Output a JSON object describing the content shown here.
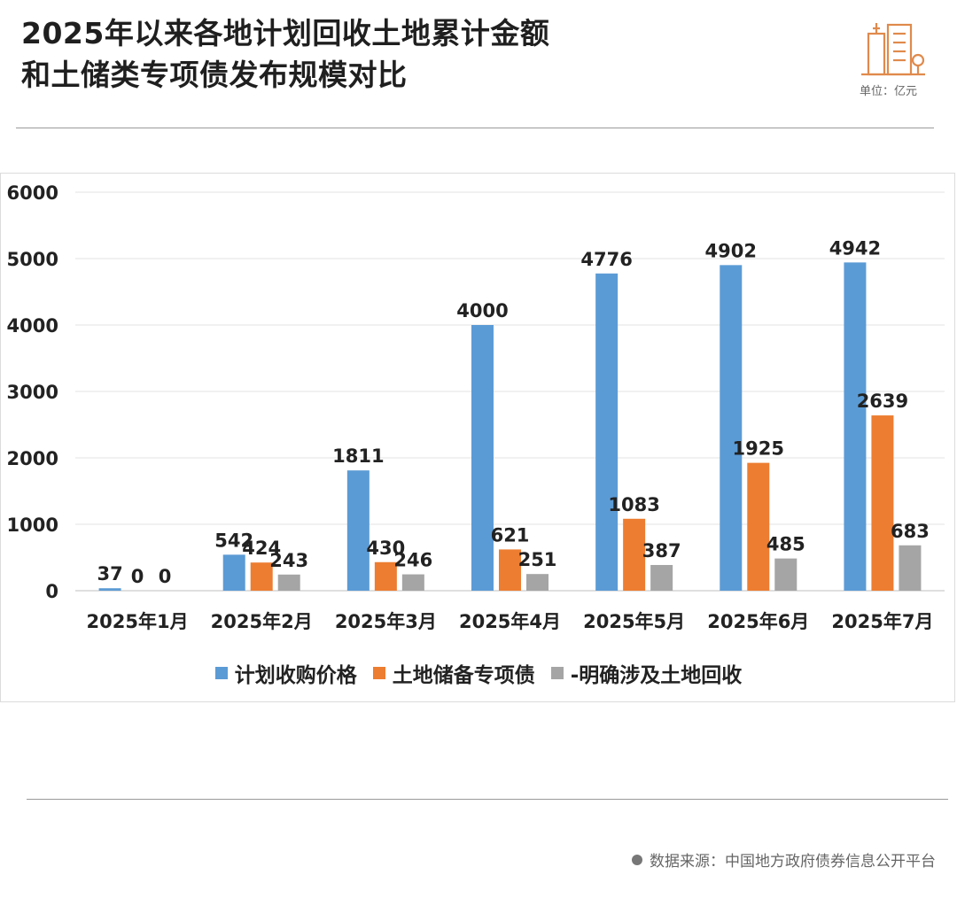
{
  "title_line1": "2025年以来各地计划回收土地累计金额",
  "title_line2": "和土储类专项债发布规模对比",
  "unit": "单位：亿元",
  "source": "数据来源：中国地方政府债券信息公开平台",
  "colors": {
    "series1": "#5B9BD5",
    "series2": "#ED7D31",
    "series3": "#A5A5A5",
    "logo": "#E08A4C"
  },
  "logo_icon": "city-buildings-icon",
  "chart_data": {
    "type": "bar",
    "categories": [
      "2025年1月",
      "2025年2月",
      "2025年3月",
      "2025年4月",
      "2025年5月",
      "2025年6月",
      "2025年7月"
    ],
    "series": [
      {
        "name": "计划收购价格",
        "values": [
          37,
          542,
          1811,
          4000,
          4776,
          4902,
          4942
        ]
      },
      {
        "name": "土地储备专项债",
        "values": [
          0,
          424,
          430,
          621,
          1083,
          1925,
          2639
        ]
      },
      {
        "name": "-明确涉及土地回收",
        "values": [
          0,
          243,
          246,
          251,
          387,
          485,
          683
        ]
      }
    ],
    "ylim": [
      0,
      6000
    ],
    "yticks": [
      0,
      1000,
      2000,
      3000,
      4000,
      5000,
      6000
    ],
    "grid": true,
    "legend_position": "bottom"
  }
}
